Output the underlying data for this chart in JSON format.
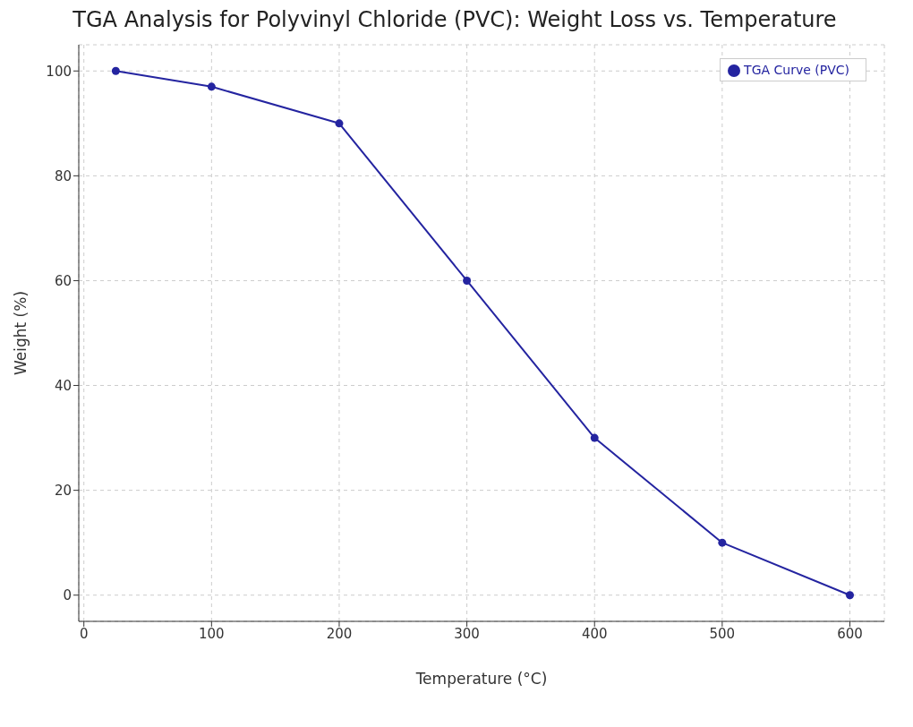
{
  "chart_data": {
    "type": "line",
    "title": "TGA Analysis for Polyvinyl Chloride (PVC): Weight Loss vs. Temperature",
    "xlabel": "Temperature (°C)",
    "ylabel": "Weight (%)",
    "x": [
      25,
      100,
      200,
      300,
      400,
      500,
      600
    ],
    "series": [
      {
        "name": "TGA Curve (PVC)",
        "color": "#2424a0",
        "values": [
          100,
          97,
          90,
          60,
          30,
          10,
          0
        ]
      }
    ],
    "xlim": [
      -4,
      627
    ],
    "xticks": [
      0,
      100,
      200,
      300,
      400,
      500,
      600
    ],
    "ylim": [
      -5,
      105
    ],
    "yticks": [
      0,
      20,
      40,
      60,
      80,
      100
    ],
    "grid": true,
    "legend": "top right",
    "marker": "circle",
    "line_style": "solid"
  }
}
